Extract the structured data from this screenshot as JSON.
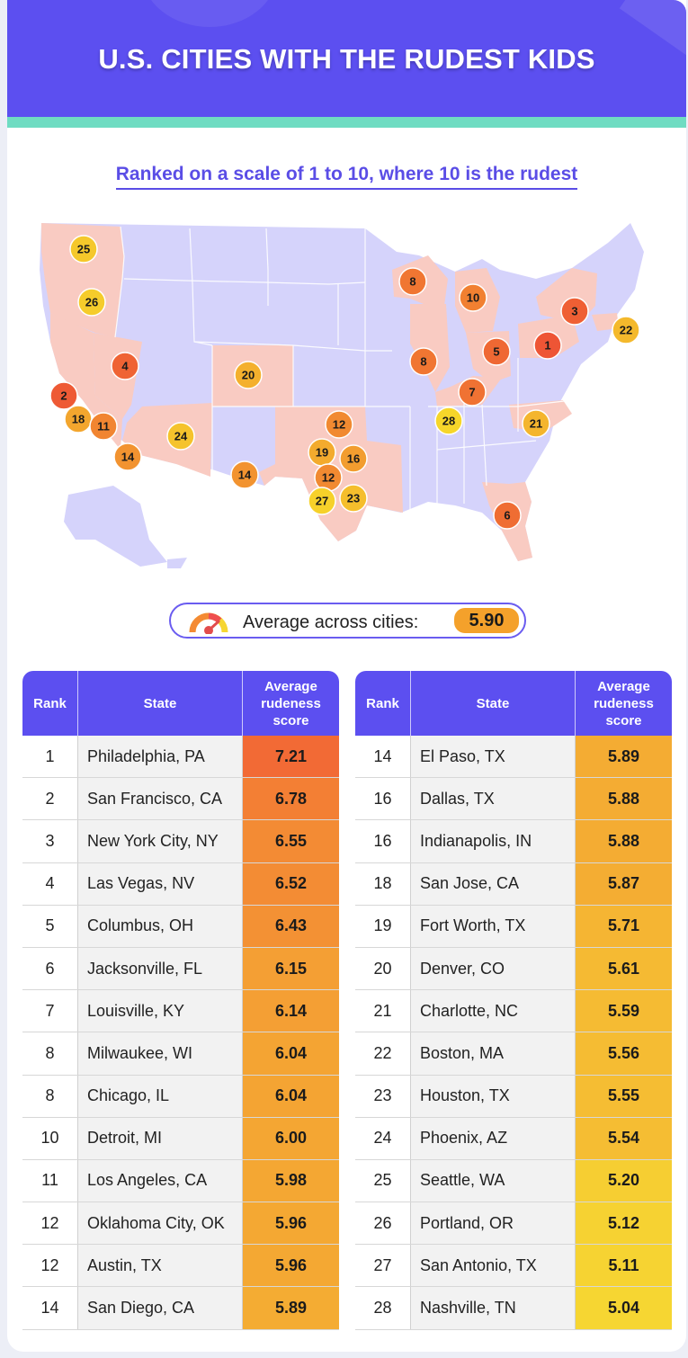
{
  "title": "U.S. CITIES WITH THE RUDEST KIDS",
  "subtitle": "Ranked on a scale of 1 to 10, where 10 is the rudest",
  "average": {
    "label": "Average across cities:",
    "value": "5.90"
  },
  "colors": {
    "header": "#5c4ff0",
    "teal": "#6fdcc2",
    "map_base": "#d5d3fb",
    "map_highlight": "#f9cbc2",
    "score_high": "#f26a35",
    "score_low": "#f6d632"
  },
  "table_headers": {
    "rank": "Rank",
    "state": "State",
    "score_line1": "Average",
    "score_line2": "rudeness",
    "score_line3": "score"
  },
  "chart_data": {
    "type": "table",
    "title": "U.S. CITIES WITH THE RUDEST KIDS",
    "subtitle": "Ranked on a scale of 1 to 10, where 10 is the rudest",
    "columns": [
      "Rank",
      "State",
      "Average rudeness score"
    ],
    "rows": [
      {
        "rank": "1",
        "city": "Philadelphia, PA",
        "score": 7.21
      },
      {
        "rank": "2",
        "city": "San Francisco, CA",
        "score": 6.78
      },
      {
        "rank": "3",
        "city": "New York City, NY",
        "score": 6.55
      },
      {
        "rank": "4",
        "city": "Las Vegas, NV",
        "score": 6.52
      },
      {
        "rank": "5",
        "city": "Columbus, OH",
        "score": 6.43
      },
      {
        "rank": "6",
        "city": "Jacksonville, FL",
        "score": 6.15
      },
      {
        "rank": "7",
        "city": "Louisville, KY",
        "score": 6.14
      },
      {
        "rank": "8",
        "city": "Milwaukee, WI",
        "score": 6.04
      },
      {
        "rank": "8",
        "city": "Chicago, IL",
        "score": 6.04
      },
      {
        "rank": "10",
        "city": "Detroit, MI",
        "score": 6.0
      },
      {
        "rank": "11",
        "city": "Los Angeles, CA",
        "score": 5.98
      },
      {
        "rank": "12",
        "city": "Oklahoma City, OK",
        "score": 5.96
      },
      {
        "rank": "12",
        "city": "Austin, TX",
        "score": 5.96
      },
      {
        "rank": "14",
        "city": "San Diego, CA",
        "score": 5.89
      },
      {
        "rank": "14",
        "city": "El Paso, TX",
        "score": 5.89
      },
      {
        "rank": "16",
        "city": "Dallas, TX",
        "score": 5.88
      },
      {
        "rank": "16",
        "city": "Indianapolis, IN",
        "score": 5.88
      },
      {
        "rank": "18",
        "city": "San Jose, CA",
        "score": 5.87
      },
      {
        "rank": "19",
        "city": "Fort Worth, TX",
        "score": 5.71
      },
      {
        "rank": "20",
        "city": "Denver, CO",
        "score": 5.61
      },
      {
        "rank": "21",
        "city": "Charlotte, NC",
        "score": 5.59
      },
      {
        "rank": "22",
        "city": "Boston, MA",
        "score": 5.56
      },
      {
        "rank": "23",
        "city": "Houston, TX",
        "score": 5.55
      },
      {
        "rank": "24",
        "city": "Phoenix, AZ",
        "score": 5.54
      },
      {
        "rank": "25",
        "city": "Seattle, WA",
        "score": 5.2
      },
      {
        "rank": "26",
        "city": "Portland, OR",
        "score": 5.12
      },
      {
        "rank": "27",
        "city": "San Antonio, TX",
        "score": 5.11
      },
      {
        "rank": "28",
        "city": "Nashville, TN",
        "score": 5.04
      }
    ]
  }
}
